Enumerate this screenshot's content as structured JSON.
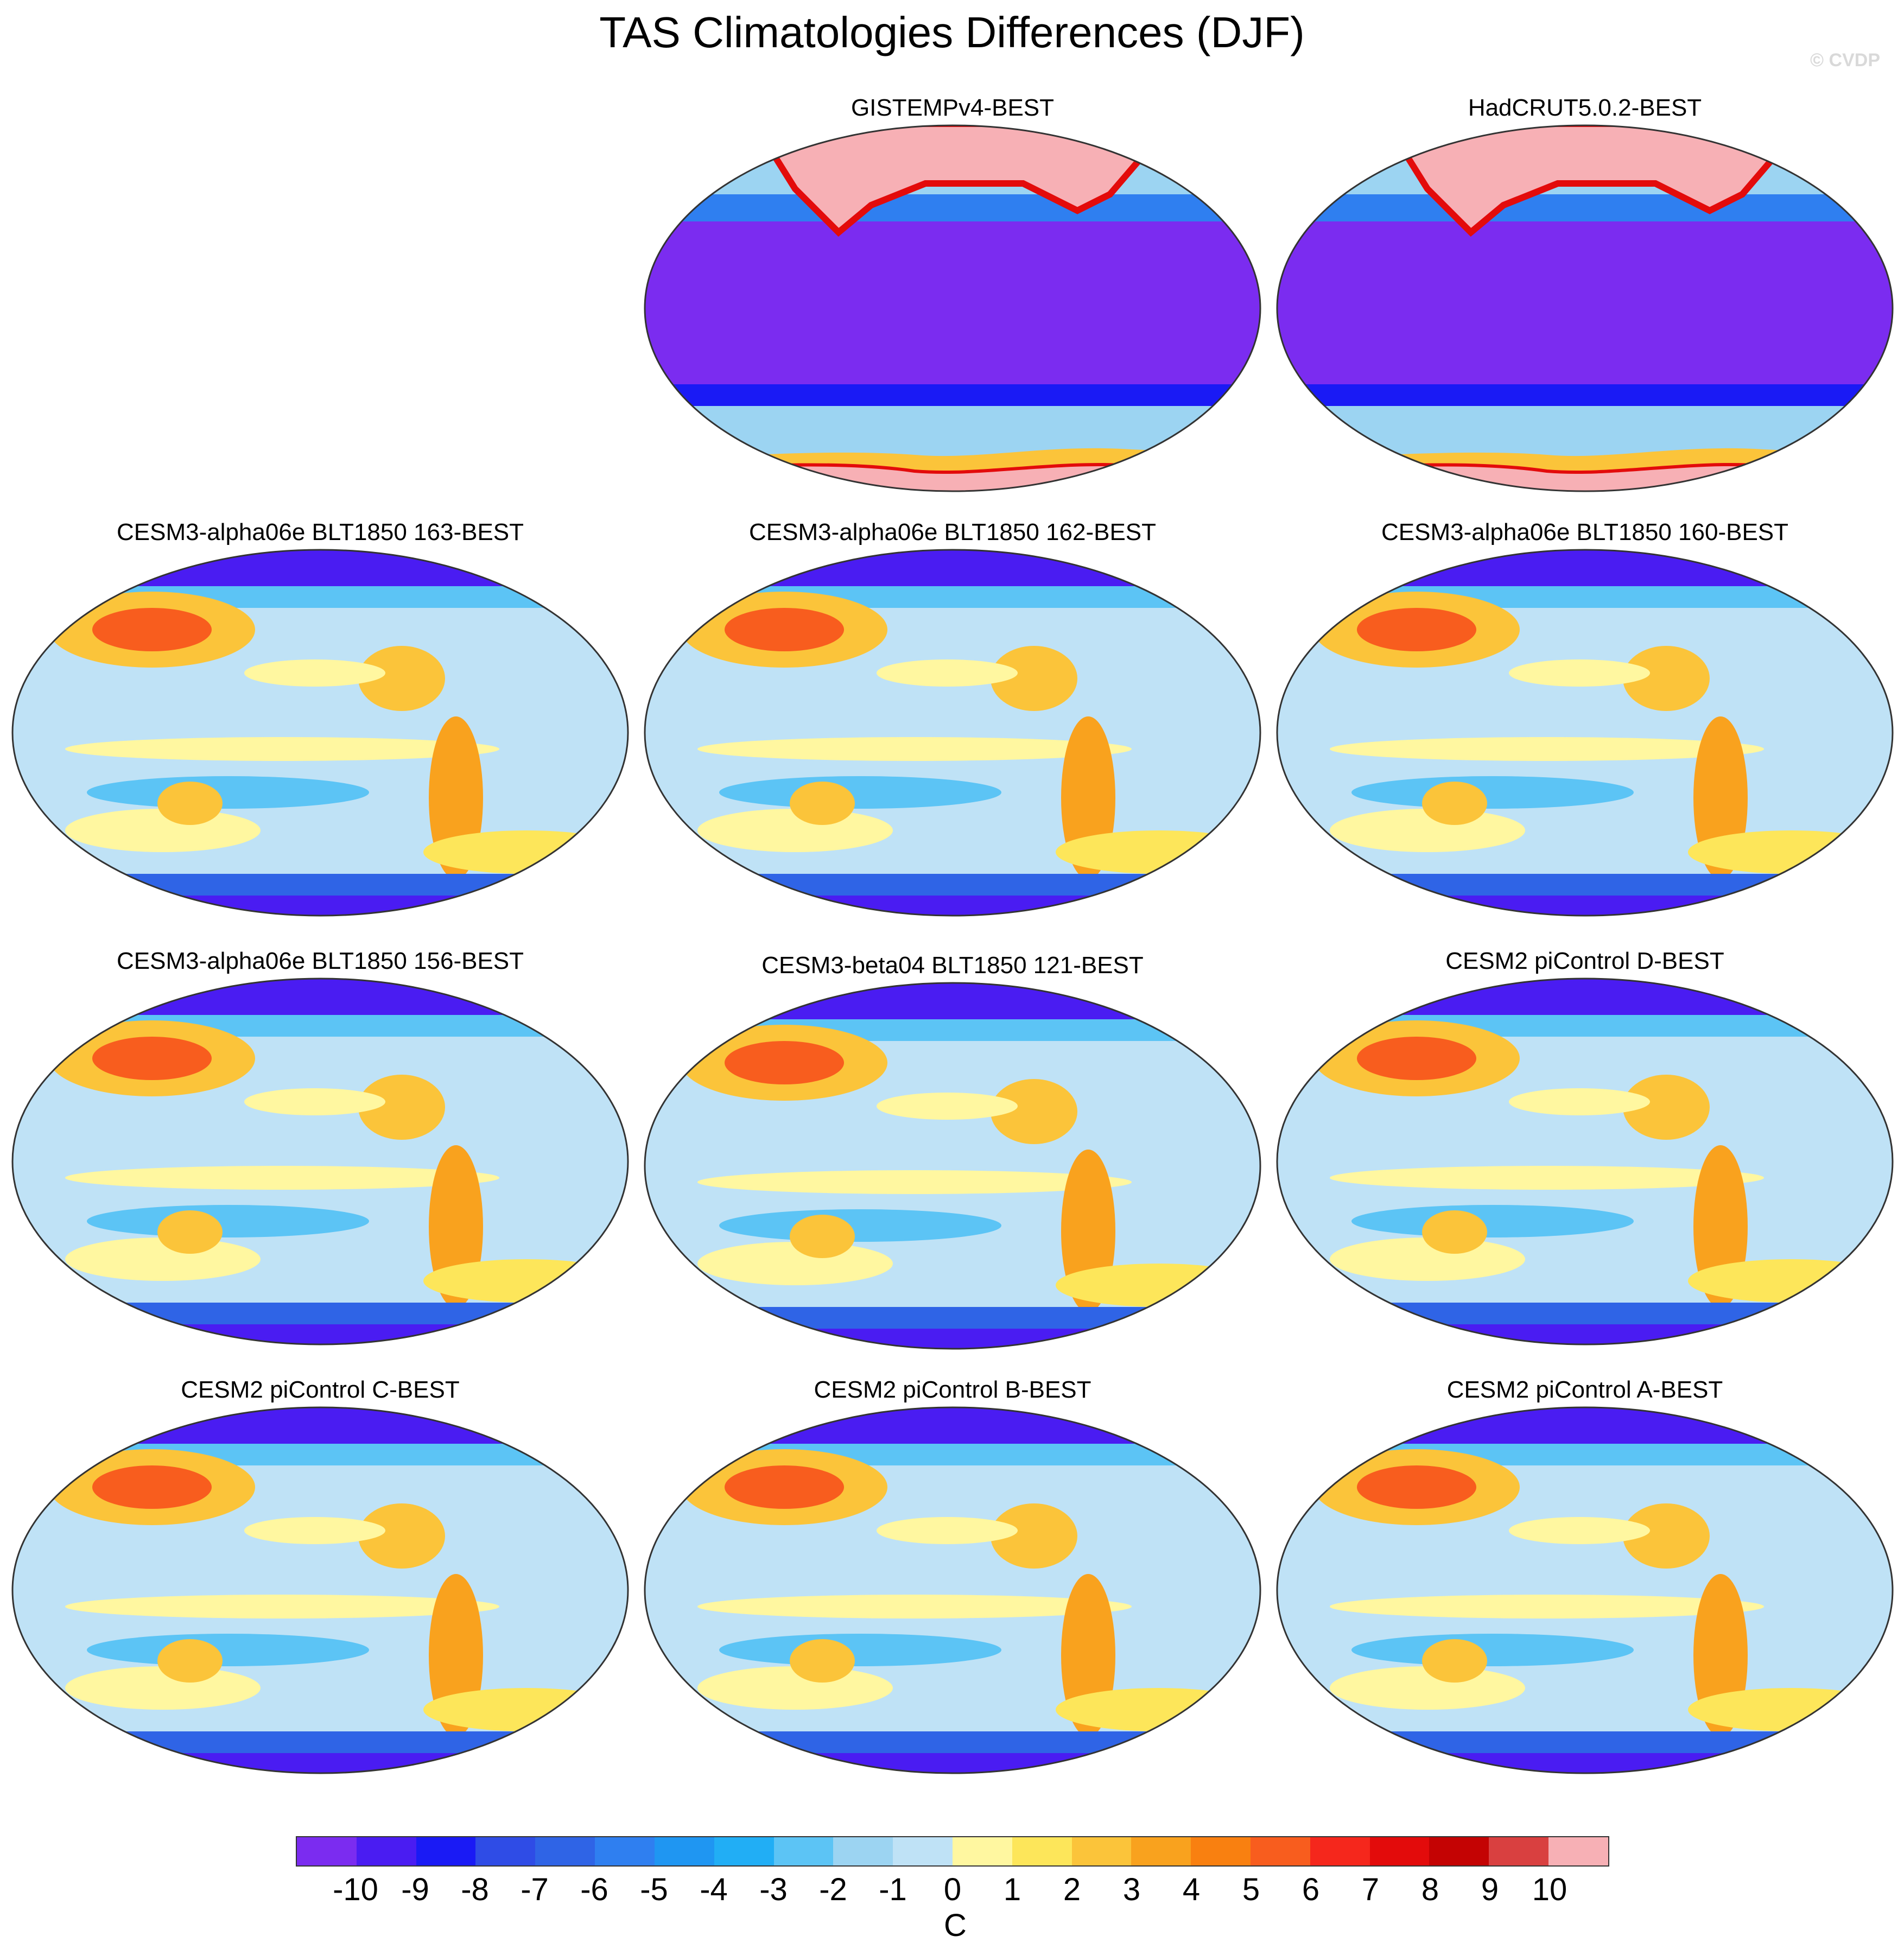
{
  "title": "TAS Climatologies Differences (DJF)",
  "copyright": "© CVDP",
  "panels": [
    {
      "label": "GISTEMPv4-BEST",
      "style": "obs"
    },
    {
      "label": "HadCRUT5.0.2-BEST",
      "style": "obs"
    },
    {
      "label": "CESM3-alpha06e BLT1850 163-BEST",
      "style": "model"
    },
    {
      "label": "CESM3-alpha06e BLT1850 162-BEST",
      "style": "model"
    },
    {
      "label": "CESM3-alpha06e BLT1850 160-BEST",
      "style": "model"
    },
    {
      "label": "CESM3-alpha06e BLT1850 156-BEST",
      "style": "model"
    },
    {
      "label": "CESM3-beta04 BLT1850 121-BEST",
      "style": "model"
    },
    {
      "label": "CESM2 piControl D-BEST",
      "style": "model2"
    },
    {
      "label": "CESM2 piControl C-BEST",
      "style": "model2"
    },
    {
      "label": "CESM2 piControl B-BEST",
      "style": "model2"
    },
    {
      "label": "CESM2 piControl A-BEST",
      "style": "model2"
    }
  ],
  "colorbar": {
    "unit": "C",
    "tick_labels": [
      "-10",
      "-9",
      "-8",
      "-7",
      "-6",
      "-5",
      "-4",
      "-3",
      "-2",
      "-1",
      "0",
      "1",
      "2",
      "3",
      "4",
      "5",
      "6",
      "7",
      "8",
      "9",
      "10"
    ],
    "colors": [
      "#7b2cf0",
      "#4a1cf2",
      "#1a1af5",
      "#2f4ce6",
      "#2f64e6",
      "#2f7ff0",
      "#1f96f2",
      "#21aef5",
      "#5cc4f5",
      "#9cd4f2",
      "#bfe2f6",
      "#fff7a0",
      "#fde65a",
      "#fbc43a",
      "#f9a21e",
      "#f98010",
      "#f85d1e",
      "#f5271c",
      "#e30b0b",
      "#c40303",
      "#d94040",
      "#f7b0b5"
    ]
  }
}
